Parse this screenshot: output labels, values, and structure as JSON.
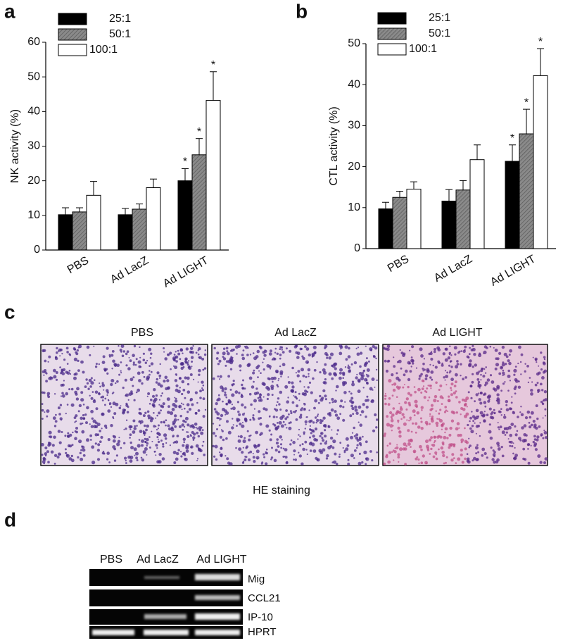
{
  "chart_data": [
    {
      "type": "bar",
      "panel_label": "a",
      "y_label": "NK activity (%)",
      "categories": [
        "PBS",
        "Ad LacZ",
        "Ad LIGHT"
      ],
      "series": [
        {
          "name": "25:1",
          "color": "#000000",
          "values": [
            10.2,
            10.2,
            20
          ],
          "errors": [
            2,
            1.8,
            3.5
          ],
          "markers": [
            null,
            null,
            "*"
          ]
        },
        {
          "name": "50:1",
          "color": "#8a8a8a",
          "values": [
            11,
            11.8,
            27.5
          ],
          "errors": [
            1.2,
            1.5,
            4.7
          ],
          "markers": [
            null,
            null,
            "*"
          ]
        },
        {
          "name": "100:1",
          "color": "#ffffff",
          "values": [
            15.8,
            18,
            43.2
          ],
          "errors": [
            4,
            2.5,
            8.3
          ],
          "markers": [
            null,
            null,
            "*"
          ]
        }
      ],
      "ylim": [
        0,
        60
      ],
      "yticks": [
        0,
        10,
        20,
        30,
        40,
        50,
        60
      ]
    },
    {
      "type": "bar",
      "panel_label": "b",
      "y_label": "CTL activity (%)",
      "categories": [
        "PBS",
        "Ad LacZ",
        "Ad LIGHT"
      ],
      "series": [
        {
          "name": "25:1",
          "color": "#000000",
          "values": [
            9.7,
            11.6,
            21.3
          ],
          "errors": [
            1.6,
            2.8,
            4
          ],
          "markers": [
            null,
            null,
            "*"
          ]
        },
        {
          "name": "50:1",
          "color": "#8a8a8a",
          "values": [
            12.5,
            14.3,
            28
          ],
          "errors": [
            1.5,
            2.3,
            6
          ],
          "markers": [
            null,
            null,
            "*"
          ]
        },
        {
          "name": "100:1",
          "color": "#ffffff",
          "values": [
            14.5,
            21.7,
            42.2
          ],
          "errors": [
            1.8,
            3.6,
            6.6
          ],
          "markers": [
            null,
            null,
            "*"
          ]
        }
      ],
      "ylim": [
        0,
        50
      ],
      "yticks": [
        0,
        10,
        20,
        30,
        40,
        50
      ]
    }
  ],
  "histology": {
    "panel_label": "c",
    "titles": [
      "PBS",
      "Ad LacZ",
      "Ad LIGHT"
    ],
    "caption": "HE staining"
  },
  "gel": {
    "panel_label": "d",
    "lanes": [
      "PBS",
      "Ad LacZ",
      "Ad LIGHT"
    ],
    "genes": [
      "Mig",
      "CCL21",
      "IP-10",
      "HPRT"
    ]
  }
}
